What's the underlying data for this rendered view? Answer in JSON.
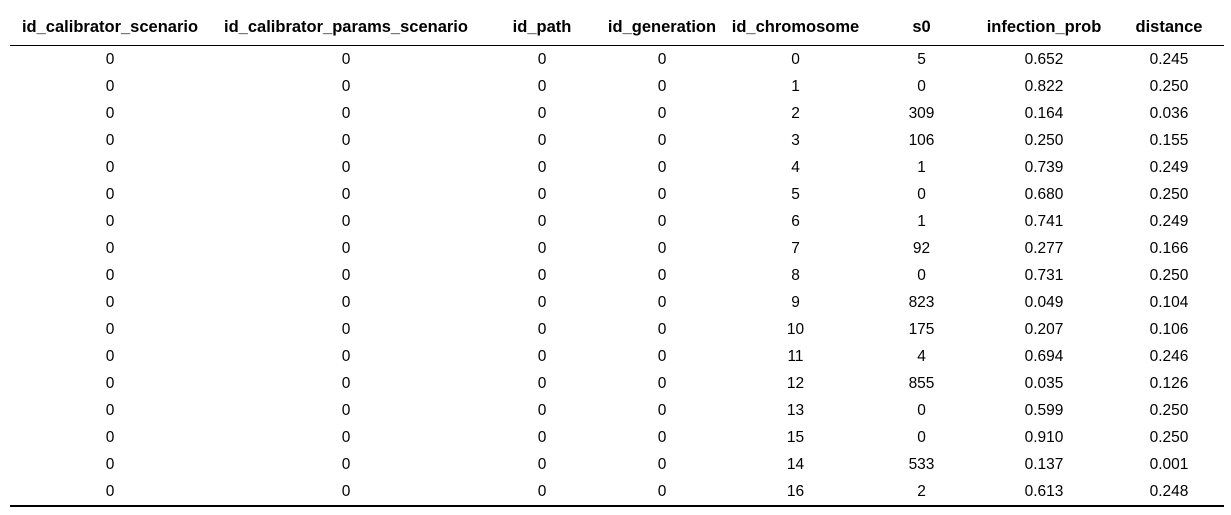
{
  "table": {
    "columns": [
      "id_calibrator_scenario",
      "id_calibrator_params_scenario",
      "id_path",
      "id_generation",
      "id_chromosome",
      "s0",
      "infection_prob",
      "distance"
    ],
    "rows": [
      [
        "0",
        "0",
        "0",
        "0",
        "0",
        "5",
        "0.652",
        "0.245"
      ],
      [
        "0",
        "0",
        "0",
        "0",
        "1",
        "0",
        "0.822",
        "0.250"
      ],
      [
        "0",
        "0",
        "0",
        "0",
        "2",
        "309",
        "0.164",
        "0.036"
      ],
      [
        "0",
        "0",
        "0",
        "0",
        "3",
        "106",
        "0.250",
        "0.155"
      ],
      [
        "0",
        "0",
        "0",
        "0",
        "4",
        "1",
        "0.739",
        "0.249"
      ],
      [
        "0",
        "0",
        "0",
        "0",
        "5",
        "0",
        "0.680",
        "0.250"
      ],
      [
        "0",
        "0",
        "0",
        "0",
        "6",
        "1",
        "0.741",
        "0.249"
      ],
      [
        "0",
        "0",
        "0",
        "0",
        "7",
        "92",
        "0.277",
        "0.166"
      ],
      [
        "0",
        "0",
        "0",
        "0",
        "8",
        "0",
        "0.731",
        "0.250"
      ],
      [
        "0",
        "0",
        "0",
        "0",
        "9",
        "823",
        "0.049",
        "0.104"
      ],
      [
        "0",
        "0",
        "0",
        "0",
        "10",
        "175",
        "0.207",
        "0.106"
      ],
      [
        "0",
        "0",
        "0",
        "0",
        "11",
        "4",
        "0.694",
        "0.246"
      ],
      [
        "0",
        "0",
        "0",
        "0",
        "12",
        "855",
        "0.035",
        "0.126"
      ],
      [
        "0",
        "0",
        "0",
        "0",
        "13",
        "0",
        "0.599",
        "0.250"
      ],
      [
        "0",
        "0",
        "0",
        "0",
        "15",
        "0",
        "0.910",
        "0.250"
      ],
      [
        "0",
        "0",
        "0",
        "0",
        "14",
        "533",
        "0.137",
        "0.001"
      ],
      [
        "0",
        "0",
        "0",
        "0",
        "16",
        "2",
        "0.613",
        "0.248"
      ]
    ]
  }
}
